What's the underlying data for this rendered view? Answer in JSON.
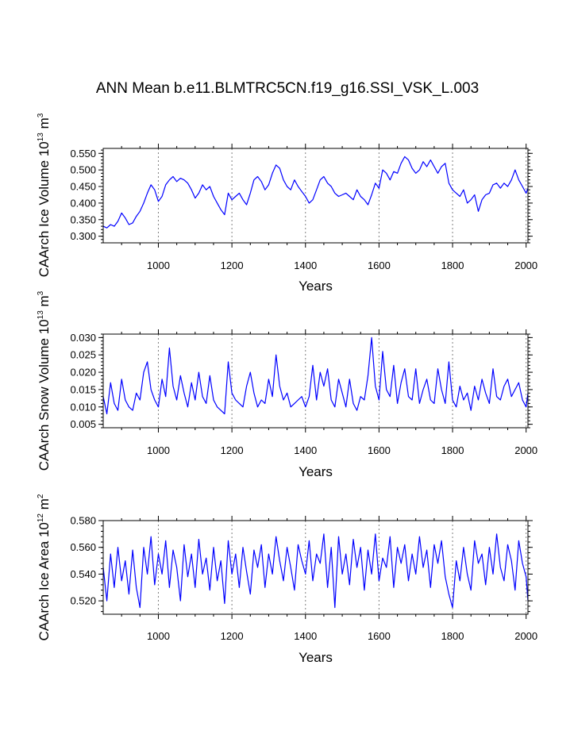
{
  "title": "ANN Mean b.e11.BLMTRC5CN.f19_g16.SSI_VSK_L.003",
  "colors": {
    "series": "#0000ff",
    "axes": "#000000",
    "grid": "#808080"
  },
  "chart_data": [
    {
      "type": "line",
      "ylabel": {
        "text": "CAArch Ice Volume 10",
        "exp1": "13",
        "unit": " m",
        "exp2": "3"
      },
      "xlabel": "Years",
      "xlim": [
        850,
        2005
      ],
      "ylim": [
        0.28,
        0.565
      ],
      "xticks": [
        1000,
        1200,
        1400,
        1600,
        1800,
        2000
      ],
      "xtick_labels": [
        "1000",
        "1200",
        "1400",
        "1600",
        "1800",
        "2000"
      ],
      "yticks": [
        0.3,
        0.35,
        0.4,
        0.45,
        0.5,
        0.55
      ],
      "ytick_labels": [
        "0.300",
        "0.350",
        "0.400",
        "0.450",
        "0.500",
        "0.550"
      ],
      "grid": "vertical dashed at major x ticks",
      "series": [
        {
          "x": [
            850,
            860,
            870,
            880,
            890,
            900,
            910,
            920,
            930,
            940,
            950,
            960,
            970,
            980,
            990,
            1000,
            1010,
            1020,
            1030,
            1040,
            1050,
            1060,
            1070,
            1080,
            1090,
            1100,
            1110,
            1120,
            1130,
            1140,
            1150,
            1160,
            1170,
            1180,
            1190,
            1200,
            1210,
            1220,
            1230,
            1240,
            1250,
            1260,
            1270,
            1280,
            1290,
            1300,
            1310,
            1320,
            1330,
            1340,
            1350,
            1360,
            1370,
            1380,
            1390,
            1400,
            1410,
            1420,
            1430,
            1440,
            1450,
            1460,
            1470,
            1480,
            1490,
            1500,
            1510,
            1520,
            1530,
            1540,
            1550,
            1560,
            1570,
            1580,
            1590,
            1600,
            1610,
            1620,
            1630,
            1640,
            1650,
            1660,
            1670,
            1680,
            1690,
            1700,
            1710,
            1720,
            1730,
            1740,
            1750,
            1760,
            1770,
            1780,
            1790,
            1800,
            1810,
            1820,
            1830,
            1840,
            1850,
            1860,
            1870,
            1880,
            1890,
            1900,
            1910,
            1920,
            1930,
            1940,
            1950,
            1960,
            1970,
            1980,
            1990,
            2000,
            2005
          ],
          "values": [
            0.33,
            0.325,
            0.335,
            0.33,
            0.345,
            0.37,
            0.355,
            0.335,
            0.34,
            0.36,
            0.375,
            0.4,
            0.43,
            0.455,
            0.44,
            0.405,
            0.42,
            0.455,
            0.47,
            0.48,
            0.465,
            0.475,
            0.47,
            0.46,
            0.44,
            0.415,
            0.43,
            0.455,
            0.44,
            0.45,
            0.42,
            0.4,
            0.38,
            0.365,
            0.43,
            0.41,
            0.42,
            0.43,
            0.41,
            0.395,
            0.43,
            0.47,
            0.48,
            0.465,
            0.44,
            0.455,
            0.49,
            0.515,
            0.505,
            0.47,
            0.45,
            0.44,
            0.47,
            0.45,
            0.435,
            0.42,
            0.4,
            0.41,
            0.44,
            0.47,
            0.48,
            0.46,
            0.45,
            0.43,
            0.42,
            0.425,
            0.43,
            0.42,
            0.41,
            0.44,
            0.42,
            0.41,
            0.395,
            0.425,
            0.46,
            0.445,
            0.5,
            0.49,
            0.47,
            0.495,
            0.49,
            0.52,
            0.54,
            0.53,
            0.505,
            0.49,
            0.5,
            0.525,
            0.51,
            0.53,
            0.51,
            0.49,
            0.51,
            0.52,
            0.46,
            0.44,
            0.43,
            0.42,
            0.44,
            0.4,
            0.41,
            0.425,
            0.375,
            0.41,
            0.425,
            0.43,
            0.455,
            0.46,
            0.445,
            0.46,
            0.45,
            0.47,
            0.5,
            0.47,
            0.45,
            0.43,
            0.445
          ]
        }
      ]
    },
    {
      "type": "line",
      "ylabel": {
        "text": "CAArch Snow Volume 10",
        "exp1": "13",
        "unit": " m",
        "exp2": "3"
      },
      "xlabel": "Years",
      "xlim": [
        850,
        2005
      ],
      "ylim": [
        0.004,
        0.031
      ],
      "xticks": [
        1000,
        1200,
        1400,
        1600,
        1800,
        2000
      ],
      "xtick_labels": [
        "1000",
        "1200",
        "1400",
        "1600",
        "1800",
        "2000"
      ],
      "yticks": [
        0.005,
        0.01,
        0.015,
        0.02,
        0.025,
        0.03
      ],
      "ytick_labels": [
        "0.005",
        "0.010",
        "0.015",
        "0.020",
        "0.025",
        "0.030"
      ],
      "grid": "vertical dashed at major x ticks",
      "series": [
        {
          "x": [
            850,
            860,
            870,
            880,
            890,
            900,
            910,
            920,
            930,
            940,
            950,
            960,
            970,
            980,
            990,
            1000,
            1010,
            1020,
            1030,
            1040,
            1050,
            1060,
            1070,
            1080,
            1090,
            1100,
            1110,
            1120,
            1130,
            1140,
            1150,
            1160,
            1170,
            1180,
            1190,
            1200,
            1210,
            1220,
            1230,
            1240,
            1250,
            1260,
            1270,
            1280,
            1290,
            1300,
            1310,
            1320,
            1330,
            1340,
            1350,
            1360,
            1370,
            1380,
            1390,
            1400,
            1410,
            1420,
            1430,
            1440,
            1450,
            1460,
            1470,
            1480,
            1490,
            1500,
            1510,
            1520,
            1530,
            1540,
            1550,
            1560,
            1570,
            1580,
            1590,
            1600,
            1610,
            1620,
            1630,
            1640,
            1650,
            1660,
            1670,
            1680,
            1690,
            1700,
            1710,
            1720,
            1730,
            1740,
            1750,
            1760,
            1770,
            1780,
            1790,
            1800,
            1810,
            1820,
            1830,
            1840,
            1850,
            1860,
            1870,
            1880,
            1890,
            1900,
            1910,
            1920,
            1930,
            1940,
            1950,
            1960,
            1970,
            1980,
            1990,
            2000,
            2005
          ],
          "values": [
            0.013,
            0.008,
            0.017,
            0.011,
            0.009,
            0.018,
            0.012,
            0.01,
            0.009,
            0.014,
            0.012,
            0.02,
            0.023,
            0.015,
            0.012,
            0.01,
            0.018,
            0.013,
            0.027,
            0.016,
            0.012,
            0.019,
            0.014,
            0.01,
            0.017,
            0.012,
            0.02,
            0.013,
            0.011,
            0.019,
            0.012,
            0.01,
            0.009,
            0.008,
            0.023,
            0.014,
            0.012,
            0.011,
            0.01,
            0.016,
            0.02,
            0.014,
            0.01,
            0.012,
            0.011,
            0.018,
            0.013,
            0.025,
            0.016,
            0.012,
            0.014,
            0.01,
            0.011,
            0.012,
            0.013,
            0.01,
            0.013,
            0.022,
            0.012,
            0.02,
            0.016,
            0.021,
            0.012,
            0.01,
            0.018,
            0.014,
            0.01,
            0.018,
            0.011,
            0.009,
            0.013,
            0.012,
            0.019,
            0.03,
            0.016,
            0.012,
            0.026,
            0.015,
            0.013,
            0.022,
            0.011,
            0.017,
            0.021,
            0.013,
            0.012,
            0.021,
            0.011,
            0.015,
            0.018,
            0.012,
            0.011,
            0.021,
            0.015,
            0.011,
            0.023,
            0.012,
            0.01,
            0.016,
            0.012,
            0.014,
            0.009,
            0.016,
            0.012,
            0.018,
            0.014,
            0.011,
            0.021,
            0.013,
            0.012,
            0.016,
            0.018,
            0.013,
            0.015,
            0.017,
            0.012,
            0.01,
            0.014
          ]
        }
      ]
    },
    {
      "type": "line",
      "ylabel": {
        "text": "CAArch Ice Area 10",
        "exp1": "12",
        "unit": " m",
        "exp2": "2"
      },
      "xlabel": "Years",
      "xlim": [
        850,
        2005
      ],
      "ylim": [
        0.51,
        0.58
      ],
      "xticks": [
        1000,
        1200,
        1400,
        1600,
        1800,
        2000
      ],
      "xtick_labels": [
        "1000",
        "1200",
        "1400",
        "1600",
        "1800",
        "2000"
      ],
      "yticks": [
        0.52,
        0.54,
        0.56,
        0.58
      ],
      "ytick_labels": [
        "0.520",
        "0.540",
        "0.560",
        "0.580"
      ],
      "grid": "vertical dashed at major x ticks",
      "series": [
        {
          "x": [
            850,
            860,
            870,
            880,
            890,
            900,
            910,
            920,
            930,
            940,
            950,
            960,
            970,
            980,
            990,
            1000,
            1010,
            1020,
            1030,
            1040,
            1050,
            1060,
            1070,
            1080,
            1090,
            1100,
            1110,
            1120,
            1130,
            1140,
            1150,
            1160,
            1170,
            1180,
            1190,
            1200,
            1210,
            1220,
            1230,
            1240,
            1250,
            1260,
            1270,
            1280,
            1290,
            1300,
            1310,
            1320,
            1330,
            1340,
            1350,
            1360,
            1370,
            1380,
            1390,
            1400,
            1410,
            1420,
            1430,
            1440,
            1450,
            1460,
            1470,
            1480,
            1490,
            1500,
            1510,
            1520,
            1530,
            1540,
            1550,
            1560,
            1570,
            1580,
            1590,
            1600,
            1610,
            1620,
            1630,
            1640,
            1650,
            1660,
            1670,
            1680,
            1690,
            1700,
            1710,
            1720,
            1730,
            1740,
            1750,
            1760,
            1770,
            1780,
            1790,
            1800,
            1810,
            1820,
            1830,
            1840,
            1850,
            1860,
            1870,
            1880,
            1890,
            1900,
            1910,
            1920,
            1930,
            1940,
            1950,
            1960,
            1970,
            1980,
            1990,
            2000,
            2005
          ],
          "values": [
            0.545,
            0.52,
            0.555,
            0.53,
            0.56,
            0.535,
            0.55,
            0.525,
            0.558,
            0.53,
            0.515,
            0.56,
            0.54,
            0.568,
            0.532,
            0.555,
            0.54,
            0.565,
            0.53,
            0.558,
            0.545,
            0.52,
            0.562,
            0.538,
            0.555,
            0.53,
            0.566,
            0.54,
            0.552,
            0.528,
            0.56,
            0.535,
            0.55,
            0.518,
            0.565,
            0.54,
            0.555,
            0.53,
            0.56,
            0.542,
            0.525,
            0.558,
            0.545,
            0.562,
            0.53,
            0.555,
            0.54,
            0.568,
            0.55,
            0.535,
            0.56,
            0.545,
            0.528,
            0.562,
            0.55,
            0.54,
            0.565,
            0.535,
            0.555,
            0.548,
            0.57,
            0.53,
            0.56,
            0.515,
            0.568,
            0.54,
            0.555,
            0.532,
            0.566,
            0.545,
            0.56,
            0.528,
            0.558,
            0.54,
            0.57,
            0.535,
            0.552,
            0.545,
            0.568,
            0.53,
            0.56,
            0.548,
            0.562,
            0.535,
            0.555,
            0.54,
            0.568,
            0.545,
            0.558,
            0.53,
            0.562,
            0.548,
            0.565,
            0.538,
            0.525,
            0.515,
            0.55,
            0.535,
            0.56,
            0.54,
            0.528,
            0.565,
            0.548,
            0.555,
            0.532,
            0.56,
            0.54,
            0.57,
            0.545,
            0.535,
            0.562,
            0.55,
            0.528,
            0.565,
            0.548,
            0.538,
            0.52
          ]
        }
      ]
    }
  ]
}
